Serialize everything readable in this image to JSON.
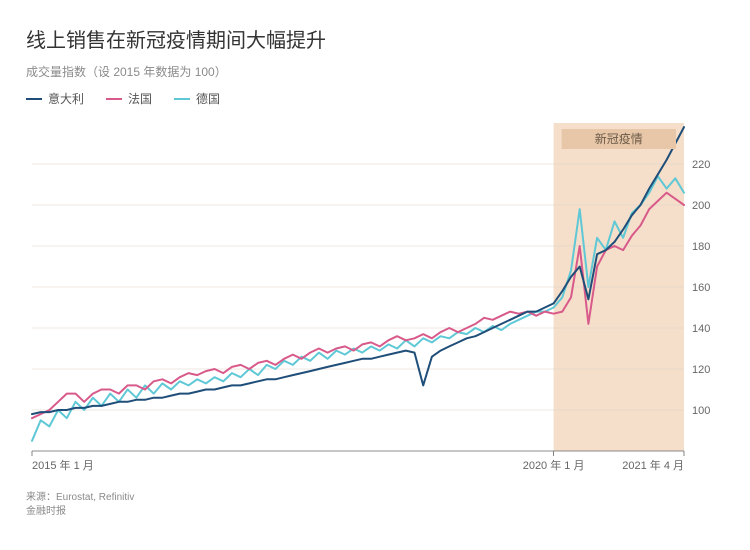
{
  "title": "线上销售在新冠疫情期间大幅提升",
  "subtitle": "成交量指数（设 2015 年数据为 100）",
  "legend": {
    "italy": "意大利",
    "france": "法国",
    "germany": "德国"
  },
  "annotation": {
    "covid_label": "新冠疫情"
  },
  "x_axis": {
    "labels": {
      "start": "2015 年 1 月",
      "mid": "2020 年 1 月",
      "end": "2021 年 4 月"
    },
    "range": [
      0,
      75
    ]
  },
  "y_axis": {
    "ticks": [
      100,
      120,
      140,
      160,
      180,
      200,
      220
    ],
    "ylim": [
      80,
      240
    ]
  },
  "covid_band": {
    "x_start": 60,
    "x_end": 75
  },
  "colors": {
    "italy": "#1f4e79",
    "france": "#d85a8a",
    "germany": "#5fc8d6",
    "grid": "#d9d0c7",
    "axis": "#666666",
    "covid_fill": "#f5dfca",
    "covid_label_bg": "#e8c7a8",
    "covid_label_text": "#6b5a48",
    "text": "#333333",
    "subtext": "#8a8a8a",
    "background": "#ffffff"
  },
  "style": {
    "line_width": 2,
    "grid_width": 0.6,
    "title_fontsize": 20,
    "subtitle_fontsize": 12,
    "legend_fontsize": 12,
    "tick_fontsize": 11,
    "footer_fontsize": 10
  },
  "series": {
    "italy": [
      98,
      99,
      99,
      100,
      100,
      101,
      101,
      102,
      102,
      103,
      104,
      104,
      105,
      105,
      106,
      106,
      107,
      108,
      108,
      109,
      110,
      110,
      111,
      112,
      112,
      113,
      114,
      115,
      115,
      116,
      117,
      118,
      119,
      120,
      121,
      122,
      123,
      124,
      125,
      125,
      126,
      127,
      128,
      129,
      128,
      112,
      126,
      129,
      131,
      133,
      135,
      136,
      138,
      140,
      142,
      144,
      146,
      148,
      148,
      150,
      152,
      158,
      165,
      170,
      154,
      176,
      178,
      182,
      188,
      195,
      200,
      208,
      215,
      222,
      230,
      238
    ],
    "france": [
      96,
      98,
      100,
      104,
      108,
      108,
      104,
      108,
      110,
      110,
      108,
      112,
      112,
      110,
      114,
      115,
      113,
      116,
      118,
      117,
      119,
      120,
      118,
      121,
      122,
      120,
      123,
      124,
      122,
      125,
      127,
      125,
      128,
      130,
      128,
      130,
      131,
      129,
      132,
      133,
      131,
      134,
      136,
      134,
      135,
      137,
      135,
      138,
      140,
      138,
      140,
      142,
      145,
      144,
      146,
      148,
      147,
      148,
      146,
      148,
      147,
      148,
      155,
      180,
      142,
      170,
      178,
      180,
      178,
      185,
      190,
      198,
      202,
      206,
      203,
      200
    ],
    "germany": [
      85,
      95,
      92,
      100,
      96,
      104,
      100,
      106,
      102,
      108,
      104,
      110,
      106,
      112,
      108,
      113,
      110,
      114,
      112,
      115,
      113,
      116,
      114,
      118,
      116,
      120,
      117,
      122,
      120,
      124,
      122,
      126,
      124,
      128,
      125,
      129,
      127,
      130,
      128,
      131,
      129,
      132,
      130,
      134,
      131,
      135,
      133,
      136,
      135,
      138,
      137,
      140,
      138,
      141,
      139,
      142,
      144,
      146,
      148,
      148,
      150,
      155,
      168,
      198,
      160,
      184,
      178,
      192,
      184,
      196,
      200,
      206,
      214,
      208,
      213,
      206
    ]
  },
  "source": {
    "line1": "来源：Eurostat, Refinitiv",
    "line2": "金融时报"
  }
}
